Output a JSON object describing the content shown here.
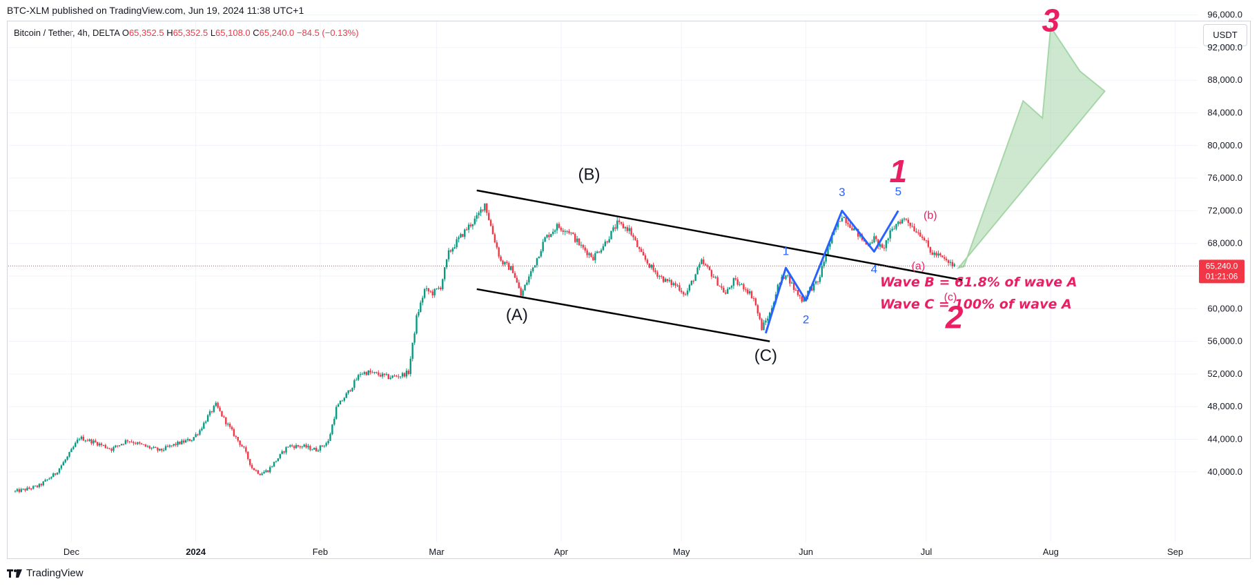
{
  "header": {
    "published_line": "BTC-XLM published on TradingView.com, Jun 19, 2024 11:38 UTC+1"
  },
  "symbol_bar": {
    "name": "Bitcoin / Tether, 4h, DELTA",
    "o_label": "O",
    "o_value": "65,352.5",
    "h_label": "H",
    "h_value": "65,352.5",
    "l_label": "L",
    "l_value": "65,108.0",
    "c_label": "C",
    "c_value": "65,240.0",
    "change": "−84.5 (−0.13%)"
  },
  "currency_button": "USDT",
  "footer": {
    "brand": "TradingView",
    "logo": "tv-logo-icon"
  },
  "colors": {
    "up": "#089981",
    "down": "#f23645",
    "wave_blue": "#2962ff",
    "wave_pink": "#e91e63",
    "arrow_green": "#a5d6a7",
    "channel": "#000000"
  },
  "chart_data": {
    "type": "candlestick",
    "symbol": "BTCUSDT",
    "timeframe": "4h",
    "y_axis": {
      "ticks": [
        "96,000.0",
        "92,000.0",
        "88,000.0",
        "84,000.0",
        "80,000.0",
        "76,000.0",
        "72,000.0",
        "68,000.0",
        "64,000.0",
        "60,000.0",
        "56,000.0",
        "52,000.0",
        "48,000.0",
        "44,000.0",
        "40,000.0"
      ],
      "tick_values": [
        96000,
        92000,
        88000,
        84000,
        80000,
        76000,
        72000,
        68000,
        64000,
        60000,
        56000,
        52000,
        48000,
        44000,
        40000
      ],
      "range": [
        37000,
        99000
      ]
    },
    "x_axis": {
      "labels": [
        "Dec",
        "2024",
        "Feb",
        "Mar",
        "Apr",
        "May",
        "Jun",
        "Jul",
        "Aug",
        "Sep"
      ],
      "day_positions": [
        14,
        45,
        76,
        105,
        136,
        166,
        197,
        227,
        258,
        289
      ],
      "start_date": "2023-11-17"
    },
    "last_price": "65,240.0",
    "countdown": "01:21:06",
    "price_path": [
      [
        0,
        37600
      ],
      [
        3,
        37900
      ],
      [
        6,
        38300
      ],
      [
        10,
        39800
      ],
      [
        13,
        41800
      ],
      [
        16,
        44200
      ],
      [
        20,
        43600
      ],
      [
        24,
        42800
      ],
      [
        28,
        43900
      ],
      [
        32,
        43200
      ],
      [
        36,
        42600
      ],
      [
        40,
        43400
      ],
      [
        44,
        44000
      ],
      [
        46,
        45100
      ],
      [
        48,
        46800
      ],
      [
        50,
        48200
      ],
      [
        52,
        46500
      ],
      [
        55,
        44200
      ],
      [
        57,
        42800
      ],
      [
        59,
        40500
      ],
      [
        61,
        39800
      ],
      [
        63,
        40200
      ],
      [
        65,
        41400
      ],
      [
        68,
        43200
      ],
      [
        72,
        43100
      ],
      [
        75,
        42700
      ],
      [
        78,
        43700
      ],
      [
        80,
        47800
      ],
      [
        83,
        49800
      ],
      [
        86,
        52100
      ],
      [
        88,
        52200
      ],
      [
        90,
        52000
      ],
      [
        93,
        51600
      ],
      [
        96,
        51800
      ],
      [
        98,
        52200
      ],
      [
        100,
        58900
      ],
      [
        102,
        62300
      ],
      [
        104,
        61900
      ],
      [
        106,
        62700
      ],
      [
        108,
        66800
      ],
      [
        110,
        68200
      ],
      [
        113,
        70100
      ],
      [
        115,
        71100
      ],
      [
        117,
        72900
      ],
      [
        119,
        69200
      ],
      [
        121,
        65800
      ],
      [
        124,
        64700
      ],
      [
        126,
        61600
      ],
      [
        128,
        63900
      ],
      [
        130,
        66200
      ],
      [
        132,
        68600
      ],
      [
        135,
        70100
      ],
      [
        138,
        69500
      ],
      [
        141,
        67600
      ],
      [
        144,
        66300
      ],
      [
        147,
        68100
      ],
      [
        150,
        70400
      ],
      [
        153,
        69700
      ],
      [
        156,
        66600
      ],
      [
        159,
        64700
      ],
      [
        162,
        63400
      ],
      [
        165,
        62800
      ],
      [
        167,
        61700
      ],
      [
        169,
        63700
      ],
      [
        171,
        65700
      ],
      [
        173,
        64600
      ],
      [
        175,
        63200
      ],
      [
        177,
        61800
      ],
      [
        179,
        63400
      ],
      [
        182,
        62500
      ],
      [
        184,
        61300
      ],
      [
        186,
        57600
      ],
      [
        188,
        59400
      ],
      [
        190,
        62700
      ],
      [
        192,
        64400
      ],
      [
        194,
        62500
      ],
      [
        196,
        61100
      ],
      [
        198,
        62400
      ],
      [
        200,
        63200
      ],
      [
        202,
        66700
      ],
      [
        204,
        69400
      ],
      [
        206,
        71500
      ],
      [
        208,
        70300
      ],
      [
        210,
        69100
      ],
      [
        212,
        67900
      ],
      [
        214,
        68600
      ],
      [
        216,
        67200
      ],
      [
        218,
        69200
      ],
      [
        220,
        70700
      ],
      [
        222,
        71000
      ],
      [
        224,
        69800
      ],
      [
        226,
        69000
      ],
      [
        228,
        66900
      ],
      [
        230,
        66500
      ],
      [
        232,
        65800
      ],
      [
        234,
        65200
      ]
    ],
    "channel_upper": [
      [
        115,
        74500
      ],
      [
        236,
        63500
      ]
    ],
    "channel_lower": [
      [
        115,
        62400
      ],
      [
        188,
        56000
      ]
    ],
    "blue_wave_path": [
      [
        187,
        57000
      ],
      [
        192,
        65000
      ],
      [
        197,
        61000
      ],
      [
        206,
        72000
      ],
      [
        214,
        67000
      ],
      [
        220,
        72000
      ]
    ],
    "blue_labels": [
      {
        "text": "1",
        "d": 192,
        "p": 66600
      },
      {
        "text": "2",
        "d": 197,
        "p": 58200
      },
      {
        "text": "3",
        "d": 206,
        "p": 73800
      },
      {
        "text": "4",
        "d": 214,
        "p": 64400
      },
      {
        "text": "5",
        "d": 220,
        "p": 73900
      }
    ],
    "black_labels": [
      {
        "text": "(A)",
        "d": 125,
        "p": 58600
      },
      {
        "text": "(B)",
        "d": 143,
        "p": 75800
      },
      {
        "text": "(C)",
        "d": 187,
        "p": 53600
      }
    ],
    "pink_small_labels": [
      {
        "text": "(b)",
        "d": 228,
        "p": 71000
      },
      {
        "text": "(a)",
        "d": 225,
        "p": 64800
      },
      {
        "text": "(c)",
        "d": 233,
        "p": 61000
      }
    ],
    "pink_big_labels": [
      {
        "text": "1",
        "d": 220,
        "p": 75500
      },
      {
        "text": "2",
        "d": 234,
        "p": 57600
      },
      {
        "text": "3",
        "d": 258,
        "p": 94000
      }
    ],
    "notes": [
      "Wave B = 61.8% of wave A",
      "Wave C = 100% of wave A"
    ],
    "arrow_target": [
      258,
      94500
    ],
    "arrow_base": [
      235,
      65000
    ]
  }
}
